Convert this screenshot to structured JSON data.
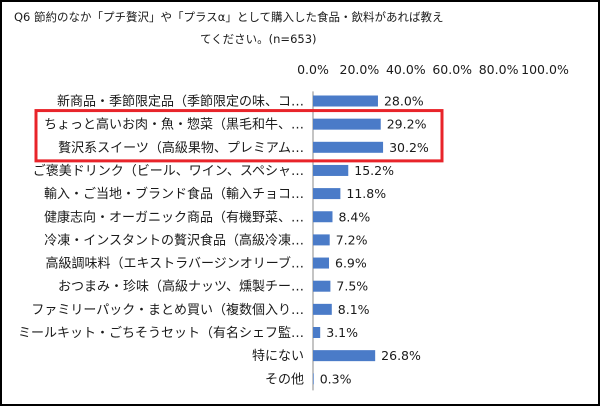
{
  "question": {
    "line1": "Q6 節約のなか「プチ贅沢」や「プラスα」として購入した食品・飲料があれば教え",
    "line2": "てください。(n=653)"
  },
  "colors": {
    "bar": "#4a7bc8",
    "highlight": "#e8242a",
    "axis": "#888888"
  },
  "highlight_rows": [
    1,
    2
  ],
  "chart_data": {
    "type": "bar",
    "orientation": "horizontal",
    "xlim": [
      0,
      100
    ],
    "ticks": [
      "0.0%",
      "20.0%",
      "40.0%",
      "60.0%",
      "80.0%",
      "100.0%"
    ],
    "tick_values": [
      0,
      20,
      40,
      60,
      80,
      100
    ],
    "categories": [
      "新商品・季節限定品（季節限定の味、コ…",
      "ちょっと高いお肉・魚・惣菜（黒毛和牛、…",
      "贅沢系スイーツ（高級果物、プレミアム…",
      "ご褒美ドリンク（ビール、ワイン、スペシャ…",
      "輸入・ご当地・ブランド食品（輸入チョコ…",
      "健康志向・オーガニック商品（有機野菜、…",
      "冷凍・インスタントの贅沢食品（高級冷凍…",
      "高級調味料（エキストラバージンオリーブ…",
      "おつまみ・珍味（高級ナッツ、燻製チー…",
      "ファミリーパック・まとめ買い（複数個入り…",
      "ミールキット・ごちそうセット（有名シェフ監…",
      "特にない",
      "その他"
    ],
    "values": [
      28.0,
      29.2,
      30.2,
      15.2,
      11.8,
      8.4,
      7.2,
      6.9,
      7.5,
      8.1,
      3.1,
      26.8,
      0.3
    ],
    "labels": [
      "28.0%",
      "29.2%",
      "30.2%",
      "15.2%",
      "11.8%",
      "8.4%",
      "7.2%",
      "6.9%",
      "7.5%",
      "8.1%",
      "3.1%",
      "26.8%",
      "0.3%"
    ],
    "grid": false,
    "legend": "none"
  }
}
